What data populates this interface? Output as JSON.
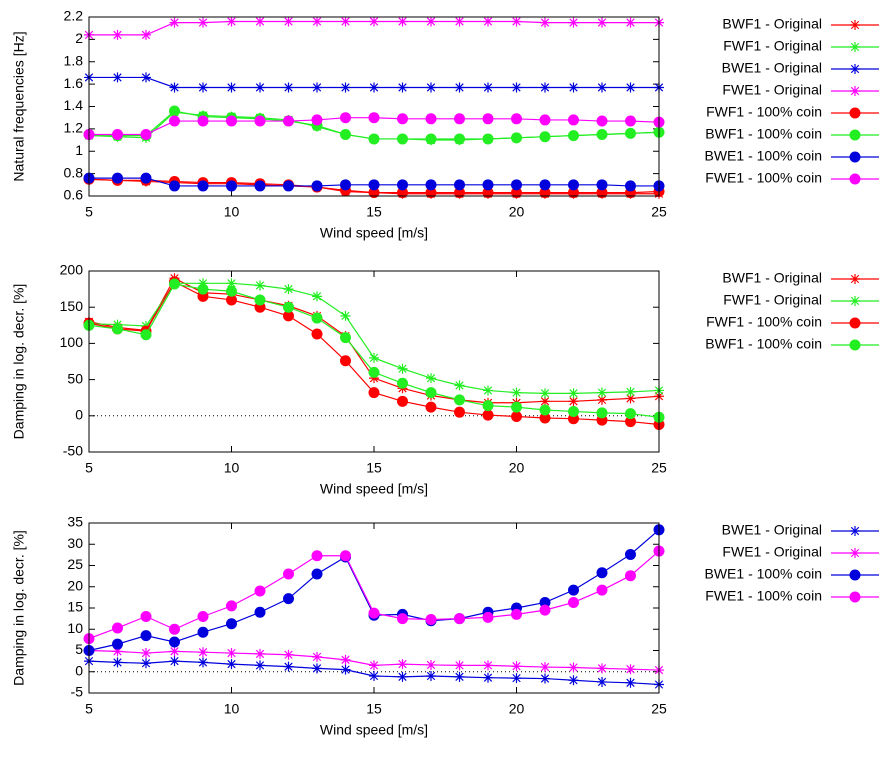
{
  "chart_data": [
    {
      "type": "line",
      "xlabel": "Wind speed [m/s]",
      "ylabel": "Natural frequencies [Hz]",
      "x": [
        5,
        6,
        7,
        8,
        9,
        10,
        11,
        12,
        13,
        14,
        15,
        16,
        17,
        18,
        19,
        20,
        21,
        22,
        23,
        24,
        25
      ],
      "xlim": [
        5,
        25
      ],
      "xticks": [
        5,
        10,
        15,
        20,
        25
      ],
      "ylim": [
        0.6,
        2.2
      ],
      "yticks": [
        0.6,
        0.8,
        1,
        1.2,
        1.4,
        1.6,
        1.8,
        2,
        2.2
      ],
      "zero_line": false,
      "series": [
        {
          "name": "BWF1 - Original",
          "color": "#ff0000",
          "marker": "star",
          "values": [
            0.75,
            0.74,
            0.73,
            0.72,
            0.71,
            0.71,
            0.7,
            0.69,
            0.68,
            0.64,
            0.63,
            0.62,
            0.62,
            0.62,
            0.62,
            0.62,
            0.62,
            0.62,
            0.62,
            0.62,
            0.62
          ]
        },
        {
          "name": "FWF1 - Original",
          "color": "#22ee22",
          "marker": "star",
          "values": [
            1.14,
            1.13,
            1.12,
            1.35,
            1.32,
            1.31,
            1.3,
            1.28,
            1.22,
            1.15,
            1.11,
            1.11,
            1.1,
            1.1,
            1.11,
            1.12,
            1.13,
            1.14,
            1.15,
            1.16,
            1.17
          ]
        },
        {
          "name": "BWE1 - Original",
          "color": "#0000dd",
          "marker": "star",
          "values": [
            1.66,
            1.66,
            1.66,
            1.57,
            1.57,
            1.57,
            1.57,
            1.57,
            1.57,
            1.57,
            1.57,
            1.57,
            1.57,
            1.57,
            1.57,
            1.57,
            1.57,
            1.57,
            1.57,
            1.57,
            1.57
          ]
        },
        {
          "name": "FWE1 - Original",
          "color": "#ff00ff",
          "marker": "star",
          "values": [
            2.04,
            2.04,
            2.04,
            2.15,
            2.15,
            2.16,
            2.16,
            2.16,
            2.16,
            2.16,
            2.16,
            2.16,
            2.16,
            2.16,
            2.16,
            2.16,
            2.15,
            2.15,
            2.15,
            2.15,
            2.15
          ]
        },
        {
          "name": "FWF1 - 100% coin",
          "color": "#ff0000",
          "marker": "circle",
          "values": [
            0.75,
            0.74,
            0.74,
            0.73,
            0.72,
            0.72,
            0.71,
            0.7,
            0.68,
            0.65,
            0.63,
            0.63,
            0.63,
            0.63,
            0.63,
            0.63,
            0.63,
            0.63,
            0.63,
            0.63,
            0.64
          ]
        },
        {
          "name": "BWF1 - 100% coin",
          "color": "#22ee22",
          "marker": "circle",
          "values": [
            1.15,
            1.14,
            1.14,
            1.36,
            1.31,
            1.3,
            1.29,
            1.27,
            1.23,
            1.15,
            1.11,
            1.11,
            1.11,
            1.11,
            1.11,
            1.12,
            1.13,
            1.14,
            1.15,
            1.16,
            1.17
          ]
        },
        {
          "name": "BWE1 - 100% coin",
          "color": "#0000dd",
          "marker": "circle",
          "values": [
            0.76,
            0.76,
            0.76,
            0.69,
            0.69,
            0.69,
            0.69,
            0.69,
            0.69,
            0.7,
            0.7,
            0.7,
            0.7,
            0.7,
            0.7,
            0.7,
            0.7,
            0.7,
            0.7,
            0.69,
            0.69
          ]
        },
        {
          "name": "FWE1 - 100% coin",
          "color": "#ff00ff",
          "marker": "circle",
          "values": [
            1.15,
            1.15,
            1.15,
            1.27,
            1.27,
            1.27,
            1.27,
            1.27,
            1.28,
            1.3,
            1.3,
            1.29,
            1.29,
            1.29,
            1.29,
            1.29,
            1.28,
            1.28,
            1.27,
            1.27,
            1.26
          ]
        }
      ]
    },
    {
      "type": "line",
      "xlabel": "Wind speed [m/s]",
      "ylabel": "Damping in log. decr. [%]",
      "x": [
        5,
        6,
        7,
        8,
        9,
        10,
        11,
        12,
        13,
        14,
        15,
        16,
        17,
        18,
        19,
        20,
        21,
        22,
        23,
        24,
        25
      ],
      "xlim": [
        5,
        25
      ],
      "xticks": [
        5,
        10,
        15,
        20,
        25
      ],
      "ylim": [
        -50,
        200
      ],
      "yticks": [
        -50,
        0,
        50,
        100,
        150,
        200
      ],
      "zero_line": true,
      "series": [
        {
          "name": "BWF1 - Original",
          "color": "#ff0000",
          "marker": "star",
          "values": [
            130,
            122,
            118,
            190,
            170,
            168,
            160,
            152,
            138,
            110,
            52,
            38,
            28,
            22,
            18,
            18,
            20,
            20,
            22,
            24,
            27
          ]
        },
        {
          "name": "FWF1 - Original",
          "color": "#22ee22",
          "marker": "star",
          "values": [
            127,
            126,
            124,
            183,
            183,
            183,
            180,
            175,
            165,
            138,
            80,
            65,
            52,
            42,
            35,
            32,
            31,
            31,
            32,
            33,
            35
          ]
        },
        {
          "name": "FWF1 - 100% coin",
          "color": "#ff0000",
          "marker": "circle",
          "values": [
            128,
            120,
            117,
            185,
            165,
            160,
            150,
            138,
            113,
            76,
            32,
            20,
            12,
            5,
            1,
            -1,
            -3,
            -4,
            -6,
            -8,
            -12
          ]
        },
        {
          "name": "BWF1 - 100% coin",
          "color": "#22ee22",
          "marker": "circle",
          "values": [
            125,
            120,
            112,
            182,
            175,
            172,
            160,
            150,
            135,
            108,
            60,
            45,
            32,
            22,
            14,
            12,
            8,
            6,
            4,
            3,
            -2
          ]
        }
      ]
    },
    {
      "type": "line",
      "xlabel": "Wind speed [m/s]",
      "ylabel": "Damping in log. decr. [%]",
      "x": [
        5,
        6,
        7,
        8,
        9,
        10,
        11,
        12,
        13,
        14,
        15,
        16,
        17,
        18,
        19,
        20,
        21,
        22,
        23,
        24,
        25
      ],
      "xlim": [
        5,
        25
      ],
      "xticks": [
        5,
        10,
        15,
        20,
        25
      ],
      "ylim": [
        -5,
        35
      ],
      "yticks": [
        -5,
        0,
        5,
        10,
        15,
        20,
        25,
        30,
        35
      ],
      "zero_line": true,
      "series": [
        {
          "name": "BWE1 - Original",
          "color": "#0000dd",
          "marker": "star",
          "values": [
            2.5,
            2.2,
            2,
            2.5,
            2.2,
            1.8,
            1.5,
            1.2,
            0.8,
            0.5,
            -1,
            -1.2,
            -1,
            -1.2,
            -1.4,
            -1.5,
            -1.6,
            -2,
            -2.4,
            -2.6,
            -3
          ]
        },
        {
          "name": "FWE1 - Original",
          "color": "#ff00ff",
          "marker": "star",
          "values": [
            5,
            4.8,
            4.4,
            4.8,
            4.6,
            4.4,
            4.2,
            4,
            3.5,
            2.8,
            1.5,
            1.8,
            1.6,
            1.5,
            1.5,
            1.3,
            1.1,
            1,
            0.8,
            0.6,
            0.4
          ]
        },
        {
          "name": "BWE1 - 100% coin",
          "color": "#0000dd",
          "marker": "circle",
          "values": [
            5,
            6.5,
            8.5,
            7,
            9.3,
            11.3,
            14,
            17.2,
            23,
            27,
            13.3,
            13.5,
            12,
            12.5,
            14,
            15,
            16.3,
            19.2,
            23.3,
            27.6,
            33.4
          ]
        },
        {
          "name": "FWE1 - 100% coin",
          "color": "#ff00ff",
          "marker": "circle",
          "values": [
            7.8,
            10.3,
            13,
            10,
            13,
            15.5,
            19,
            23,
            27.3,
            27.3,
            13.8,
            12.5,
            12.3,
            12.5,
            12.8,
            13.5,
            14.5,
            16.3,
            19.2,
            22.6,
            28.4
          ]
        }
      ]
    }
  ]
}
